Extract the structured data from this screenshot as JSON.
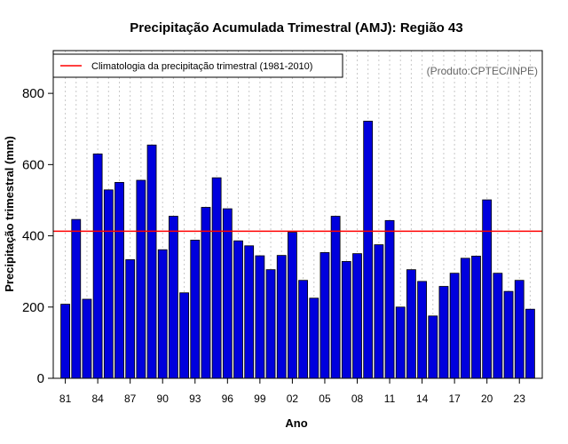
{
  "chart_data": {
    "type": "bar",
    "title": "Precipitação Acumulada Trimestral (AMJ): Região 43",
    "xlabel": "Ano",
    "ylabel": "Precipitação trimestral (mm)",
    "ylim": [
      0,
      920
    ],
    "yticks": [
      0,
      200,
      400,
      600,
      800
    ],
    "xtick_labels": [
      "81",
      "84",
      "87",
      "90",
      "93",
      "96",
      "99",
      "02",
      "05",
      "08",
      "11",
      "14",
      "17",
      "20",
      "23"
    ],
    "categories": [
      "1981",
      "1982",
      "1983",
      "1984",
      "1985",
      "1986",
      "1987",
      "1988",
      "1989",
      "1990",
      "1991",
      "1992",
      "1993",
      "1994",
      "1995",
      "1996",
      "1997",
      "1998",
      "1999",
      "2000",
      "2001",
      "2002",
      "2003",
      "2004",
      "2005",
      "2006",
      "2007",
      "2008",
      "2009",
      "2010",
      "2011",
      "2012",
      "2013",
      "2014",
      "2015",
      "2016",
      "2017",
      "2018",
      "2019",
      "2020",
      "2021",
      "2022",
      "2023",
      "2024"
    ],
    "values": [
      208,
      446,
      222,
      630,
      529,
      550,
      333,
      556,
      655,
      361,
      455,
      240,
      388,
      480,
      563,
      476,
      386,
      372,
      344,
      305,
      345,
      410,
      275,
      225,
      353,
      455,
      328,
      350,
      722,
      375,
      443,
      200,
      305,
      272,
      175,
      258,
      295,
      337,
      343,
      501,
      295,
      244,
      275,
      194
    ],
    "bar_color": "#0000dd",
    "climatology": 413,
    "climatology_color": "#ff0000",
    "grid": "vertical dotted",
    "legend": {
      "label": "Climatologia da precipitação trimestral (1981-2010)",
      "position": "top-left"
    },
    "credit": "(Produto:CPTEC/INPE)"
  }
}
